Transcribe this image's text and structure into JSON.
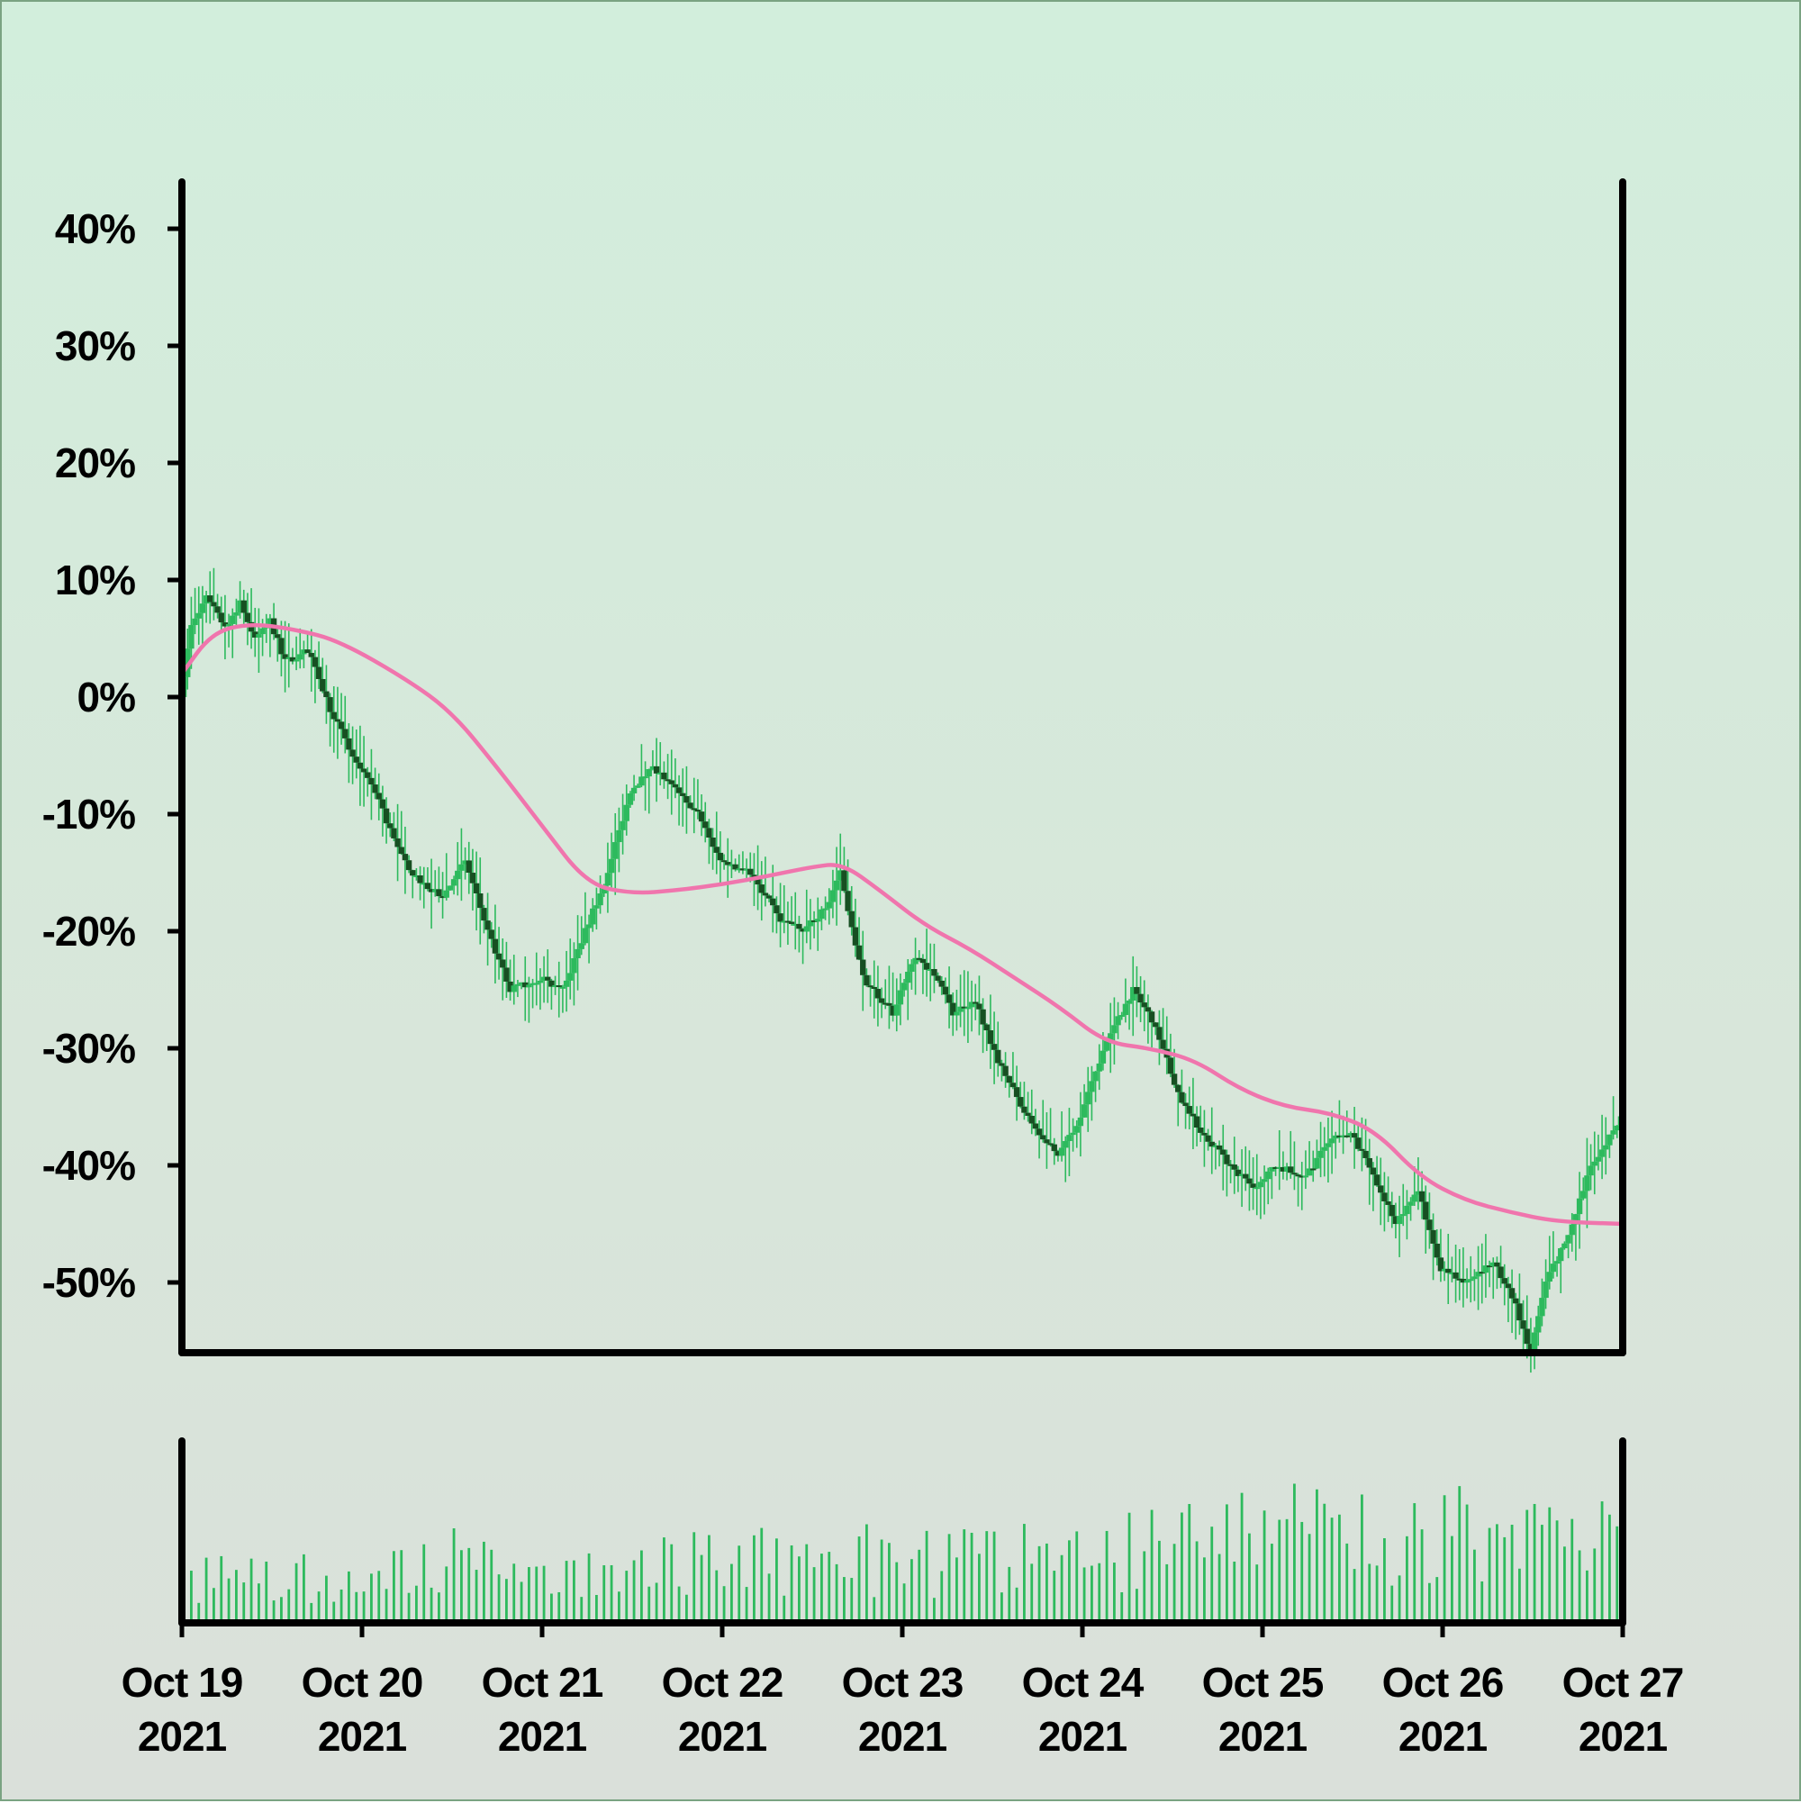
{
  "colors": {
    "background_top": "#d2eedc",
    "background_bottom": "#dae0da",
    "axis": "#000000",
    "candle_up": "#2dba5d",
    "candle_down": "#174f22",
    "moving_average": "#f075ad",
    "volume": "#2dba5d"
  },
  "chart_data": {
    "type": "candlestick",
    "title": "",
    "xlabel": "",
    "ylabel": "",
    "y_format": "percent",
    "ylim": [
      -56,
      40
    ],
    "y_ticks": [
      {
        "value": 40,
        "label": "40%"
      },
      {
        "value": 30,
        "label": "30%"
      },
      {
        "value": 20,
        "label": "20%"
      },
      {
        "value": 10,
        "label": "10%"
      },
      {
        "value": 0,
        "label": "0%"
      },
      {
        "value": -10,
        "label": "-10%"
      },
      {
        "value": -20,
        "label": "-20%"
      },
      {
        "value": -30,
        "label": "-30%"
      },
      {
        "value": -40,
        "label": "-40%"
      },
      {
        "value": -50,
        "label": "-50%"
      }
    ],
    "x_range": [
      "2021-10-19",
      "2021-10-27"
    ],
    "x_ticks": [
      {
        "date": "2021-10-19",
        "line1": "Oct 19",
        "line2": "2021"
      },
      {
        "date": "2021-10-20",
        "line1": "Oct 20",
        "line2": "2021"
      },
      {
        "date": "2021-10-21",
        "line1": "Oct 21",
        "line2": "2021"
      },
      {
        "date": "2021-10-22",
        "line1": "Oct 22",
        "line2": "2021"
      },
      {
        "date": "2021-10-23",
        "line1": "Oct 23",
        "line2": "2021"
      },
      {
        "date": "2021-10-24",
        "line1": "Oct 24",
        "line2": "2021"
      },
      {
        "date": "2021-10-25",
        "line1": "Oct 25",
        "line2": "2021"
      },
      {
        "date": "2021-10-26",
        "line1": "Oct 26",
        "line2": "2021"
      },
      {
        "date": "2021-10-27",
        "line1": "Oct 27",
        "line2": "2021"
      }
    ],
    "close_path": [
      [
        "2021-10-19 00:00",
        0
      ],
      [
        "2021-10-19 01:30",
        6
      ],
      [
        "2021-10-19 03:30",
        8.5
      ],
      [
        "2021-10-19 06:00",
        6
      ],
      [
        "2021-10-19 08:00",
        8
      ],
      [
        "2021-10-19 10:00",
        5
      ],
      [
        "2021-10-19 12:00",
        6.5
      ],
      [
        "2021-10-19 14:00",
        3
      ],
      [
        "2021-10-19 17:00",
        4
      ],
      [
        "2021-10-19 20:00",
        -1
      ],
      [
        "2021-10-19 23:00",
        -5
      ],
      [
        "2021-10-20 02:00",
        -8
      ],
      [
        "2021-10-20 05:00",
        -13
      ],
      [
        "2021-10-20 08:00",
        -16
      ],
      [
        "2021-10-20 11:00",
        -17
      ],
      [
        "2021-10-20 14:00",
        -14
      ],
      [
        "2021-10-20 17:00",
        -20
      ],
      [
        "2021-10-20 20:00",
        -25
      ],
      [
        "2021-10-21 00:00",
        -24
      ],
      [
        "2021-10-21 03:00",
        -25
      ],
      [
        "2021-10-21 06:00",
        -20
      ],
      [
        "2021-10-21 09:00",
        -15
      ],
      [
        "2021-10-21 12:00",
        -8
      ],
      [
        "2021-10-21 15:00",
        -6
      ],
      [
        "2021-10-21 18:00",
        -8
      ],
      [
        "2021-10-21 21:00",
        -10
      ],
      [
        "2021-10-22 00:00",
        -14
      ],
      [
        "2021-10-22 04:00",
        -15
      ],
      [
        "2021-10-22 08:00",
        -19
      ],
      [
        "2021-10-22 11:00",
        -20
      ],
      [
        "2021-10-22 14:00",
        -18
      ],
      [
        "2021-10-22 16:00",
        -15
      ],
      [
        "2021-10-22 19:00",
        -24
      ],
      [
        "2021-10-22 23:00",
        -27
      ],
      [
        "2021-10-23 02:00",
        -22
      ],
      [
        "2021-10-23 05:00",
        -24
      ],
      [
        "2021-10-23 07:00",
        -27
      ],
      [
        "2021-10-23 10:00",
        -26
      ],
      [
        "2021-10-23 13:00",
        -31
      ],
      [
        "2021-10-23 17:00",
        -36
      ],
      [
        "2021-10-23 21:00",
        -39
      ],
      [
        "2021-10-24 00:00",
        -36
      ],
      [
        "2021-10-24 03:00",
        -30
      ],
      [
        "2021-10-24 07:00",
        -25
      ],
      [
        "2021-10-24 10:00",
        -28
      ],
      [
        "2021-10-24 13:00",
        -34
      ],
      [
        "2021-10-24 16:00",
        -37
      ],
      [
        "2021-10-24 20:00",
        -40
      ],
      [
        "2021-10-24 23:00",
        -42
      ],
      [
        "2021-10-25 02:00",
        -40
      ],
      [
        "2021-10-25 06:00",
        -41
      ],
      [
        "2021-10-25 09:00",
        -38
      ],
      [
        "2021-10-25 12:00",
        -37
      ],
      [
        "2021-10-25 15:00",
        -41
      ],
      [
        "2021-10-25 18:00",
        -45
      ],
      [
        "2021-10-25 21:00",
        -42
      ],
      [
        "2021-10-26 00:00",
        -49
      ],
      [
        "2021-10-26 04:00",
        -50
      ],
      [
        "2021-10-26 07:00",
        -48
      ],
      [
        "2021-10-26 10:00",
        -52
      ],
      [
        "2021-10-26 12:00",
        -56
      ],
      [
        "2021-10-26 14:00",
        -50
      ],
      [
        "2021-10-26 17:00",
        -46
      ],
      [
        "2021-10-26 20:00",
        -40
      ],
      [
        "2021-10-26 23:00",
        -37
      ],
      [
        "2021-10-27 00:00",
        -36
      ]
    ],
    "moving_average": [
      [
        "2021-10-19 00:00",
        2
      ],
      [
        "2021-10-19 04:00",
        5.5
      ],
      [
        "2021-10-19 09:00",
        6.3
      ],
      [
        "2021-10-19 15:00",
        5.8
      ],
      [
        "2021-10-19 21:00",
        4.8
      ],
      [
        "2021-10-20 06:00",
        1.5
      ],
      [
        "2021-10-20 12:00",
        -1.3
      ],
      [
        "2021-10-20 18:00",
        -6
      ],
      [
        "2021-10-21 00:00",
        -11
      ],
      [
        "2021-10-21 06:00",
        -16
      ],
      [
        "2021-10-21 12:00",
        -16.8
      ],
      [
        "2021-10-21 18:00",
        -16.5
      ],
      [
        "2021-10-22 00:00",
        -16
      ],
      [
        "2021-10-22 06:00",
        -15.3
      ],
      [
        "2021-10-22 12:00",
        -14.5
      ],
      [
        "2021-10-22 16:00",
        -14.2
      ],
      [
        "2021-10-22 21:00",
        -16.5
      ],
      [
        "2021-10-23 03:00",
        -19.5
      ],
      [
        "2021-10-23 09:00",
        -21.5
      ],
      [
        "2021-10-23 15:00",
        -24
      ],
      [
        "2021-10-23 21:00",
        -26.5
      ],
      [
        "2021-10-24 03:00",
        -29.5
      ],
      [
        "2021-10-24 09:00",
        -30
      ],
      [
        "2021-10-24 15:00",
        -31
      ],
      [
        "2021-10-24 21:00",
        -33.5
      ],
      [
        "2021-10-25 03:00",
        -35
      ],
      [
        "2021-10-25 09:00",
        -35.5
      ],
      [
        "2021-10-25 15:00",
        -37
      ],
      [
        "2021-10-25 21:00",
        -41
      ],
      [
        "2021-10-26 03:00",
        -43
      ],
      [
        "2021-10-26 09:00",
        -44
      ],
      [
        "2021-10-26 15:00",
        -44.8
      ],
      [
        "2021-10-27 00:00",
        -45
      ]
    ],
    "volume_range": [
      0,
      1
    ],
    "volume_level_path": [
      [
        "2021-10-19 00:00",
        0.28
      ],
      [
        "2021-10-20 00:00",
        0.32
      ],
      [
        "2021-10-20 12:00",
        0.42
      ],
      [
        "2021-10-21 00:00",
        0.28
      ],
      [
        "2021-10-21 12:00",
        0.35
      ],
      [
        "2021-10-22 00:00",
        0.45
      ],
      [
        "2021-10-22 12:00",
        0.4
      ],
      [
        "2021-10-23 00:00",
        0.42
      ],
      [
        "2021-10-23 12:00",
        0.4
      ],
      [
        "2021-10-24 00:00",
        0.45
      ],
      [
        "2021-10-24 12:00",
        0.48
      ],
      [
        "2021-10-25 00:00",
        0.6
      ],
      [
        "2021-10-25 12:00",
        0.55
      ],
      [
        "2021-10-26 00:00",
        0.58
      ],
      [
        "2021-10-26 12:00",
        0.55
      ],
      [
        "2021-10-27 00:00",
        0.55
      ]
    ]
  }
}
